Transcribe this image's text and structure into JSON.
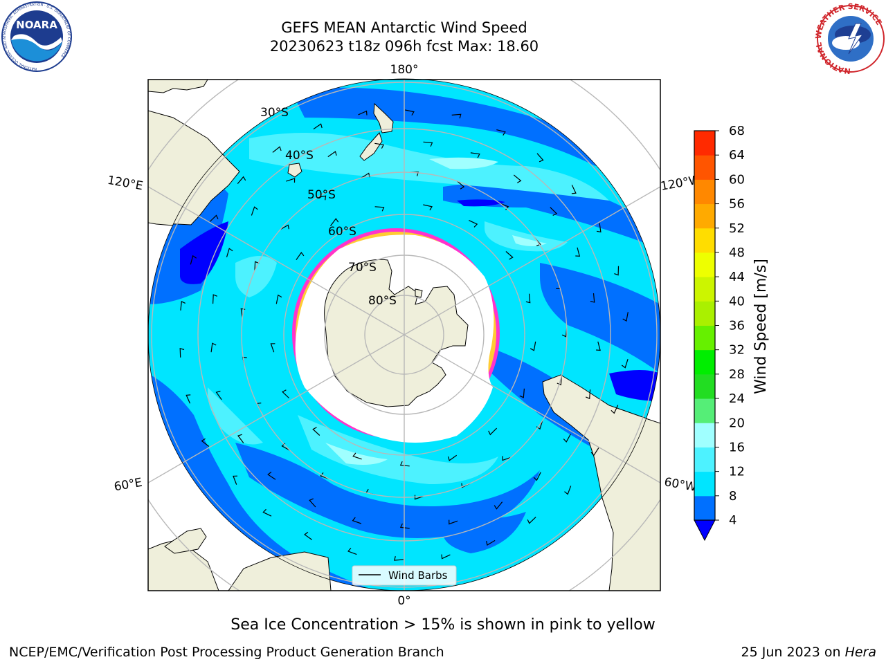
{
  "header": {
    "title_line1": "GEFS MEAN Antarctic Wind Speed",
    "title_line2": "20230623 t18z 096h fcst   Max: 18.60"
  },
  "logos": {
    "left": {
      "text": "NOARA",
      "ring_text": "NATIONAL OCEANIC AND ATMOSPHERIC ADMINISTRATION · U.S. DEPARTMENT OF COMMERCE"
    },
    "right": {
      "ring_text": "NATIONAL WEATHER SERVICE"
    }
  },
  "map": {
    "meridian_labels": {
      "top": "180°",
      "bottom": "0°",
      "upper_left": "120°E",
      "upper_right": "120°W",
      "lower_left": "60°E",
      "lower_right": "60°W"
    },
    "parallel_labels": [
      "30°S",
      "40°S",
      "50°S",
      "60°S",
      "70°S",
      "80°S"
    ],
    "legend_label": "Wind Barbs"
  },
  "colorbar": {
    "label": "Wind Speed [m/s]",
    "ticks": [
      "4",
      "8",
      "12",
      "16",
      "20",
      "24",
      "28",
      "32",
      "36",
      "40",
      "44",
      "48",
      "52",
      "56",
      "60",
      "64",
      "68"
    ],
    "colors": [
      "#0000ff",
      "#0070ff",
      "#00e5ff",
      "#4df2ff",
      "#a0ffff",
      "#55ee77",
      "#22dd22",
      "#00ee00",
      "#66f000",
      "#aaf000",
      "#ccf500",
      "#eeff00",
      "#ffdd00",
      "#ffaa00",
      "#ff8800",
      "#ff5500",
      "#ff2a00",
      "#ff0000"
    ]
  },
  "footer": {
    "caption": "Sea Ice Concentration > 15% is shown in pink to yellow",
    "branch": "NCEP/EMC/Verification Post Processing Product Generation Branch",
    "date": "25 Jun 2023 on",
    "host": "Hera"
  }
}
